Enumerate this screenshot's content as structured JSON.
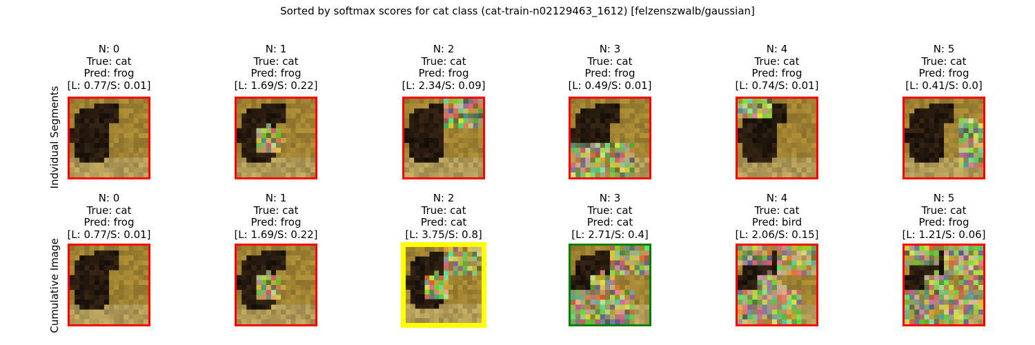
{
  "figure": {
    "title": "Sorted by softmax scores for cat class (cat-train-n02129463_1612) [felzenszwalb/gaussian]"
  },
  "colors": {
    "border_wrong": "#ff0000",
    "border_correct": "#008000",
    "border_best": "#ffff00"
  },
  "chart_data": {
    "type": "table",
    "title": "Sorted by softmax scores for cat class (cat-train-n02129463_1612) [felzenszwalb/gaussian]",
    "rows": [
      {
        "label": "Indvidual Segments",
        "panels": [
          {
            "n": "N: 0",
            "true": "True: cat",
            "pred": "Pred: frog",
            "ls": "[L: 0.77/S: 0.01]",
            "L": 0.77,
            "S": 0.01,
            "border": "red",
            "noise": 0
          },
          {
            "n": "N: 1",
            "true": "True: cat",
            "pred": "Pred: frog",
            "ls": "[L: 1.69/S: 0.22]",
            "L": 1.69,
            "S": 0.22,
            "border": "red",
            "noise": 1
          },
          {
            "n": "N: 2",
            "true": "True: cat",
            "pred": "Pred: frog",
            "ls": "[L: 2.34/S: 0.09]",
            "L": 2.34,
            "S": 0.09,
            "border": "red",
            "noise": 2
          },
          {
            "n": "N: 3",
            "true": "True: cat",
            "pred": "Pred: frog",
            "ls": "[L: 0.49/S: 0.01]",
            "L": 0.49,
            "S": 0.01,
            "border": "red",
            "noise": 3
          },
          {
            "n": "N: 4",
            "true": "True: cat",
            "pred": "Pred: frog",
            "ls": "[L: 0.74/S: 0.01]",
            "L": 0.74,
            "S": 0.01,
            "border": "red",
            "noise": 4
          },
          {
            "n": "N: 5",
            "true": "True: cat",
            "pred": "Pred: frog",
            "ls": "[L: 0.41/S: 0.0]",
            "L": 0.41,
            "S": 0.0,
            "border": "red",
            "noise": 5
          }
        ]
      },
      {
        "label": "Cumulative Image",
        "panels": [
          {
            "n": "N: 0",
            "true": "True: cat",
            "pred": "Pred: frog",
            "ls": "[L: 0.77/S: 0.01]",
            "L": 0.77,
            "S": 0.01,
            "border": "red",
            "noise": 0
          },
          {
            "n": "N: 1",
            "true": "True: cat",
            "pred": "Pred: frog",
            "ls": "[L: 1.69/S: 0.22]",
            "L": 1.69,
            "S": 0.22,
            "border": "red",
            "noise": 1
          },
          {
            "n": "N: 2",
            "true": "True: cat",
            "pred": "Pred: cat",
            "ls": "[L: 3.75/S: 0.8]",
            "L": 3.75,
            "S": 0.8,
            "border": "yellow",
            "noise": 12
          },
          {
            "n": "N: 3",
            "true": "True: cat",
            "pred": "Pred: cat",
            "ls": "[L: 2.71/S: 0.4]",
            "L": 2.71,
            "S": 0.4,
            "border": "green",
            "noise": 123
          },
          {
            "n": "N: 4",
            "true": "True: cat",
            "pred": "Pred: bird",
            "ls": "[L: 2.06/S: 0.15]",
            "L": 2.06,
            "S": 0.15,
            "border": "red",
            "noise": 1234
          },
          {
            "n": "N: 5",
            "true": "True: cat",
            "pred": "Pred: frog",
            "ls": "[L: 1.21/S: 0.06]",
            "L": 1.21,
            "S": 0.06,
            "border": "red",
            "noise": 12345
          }
        ]
      }
    ]
  }
}
